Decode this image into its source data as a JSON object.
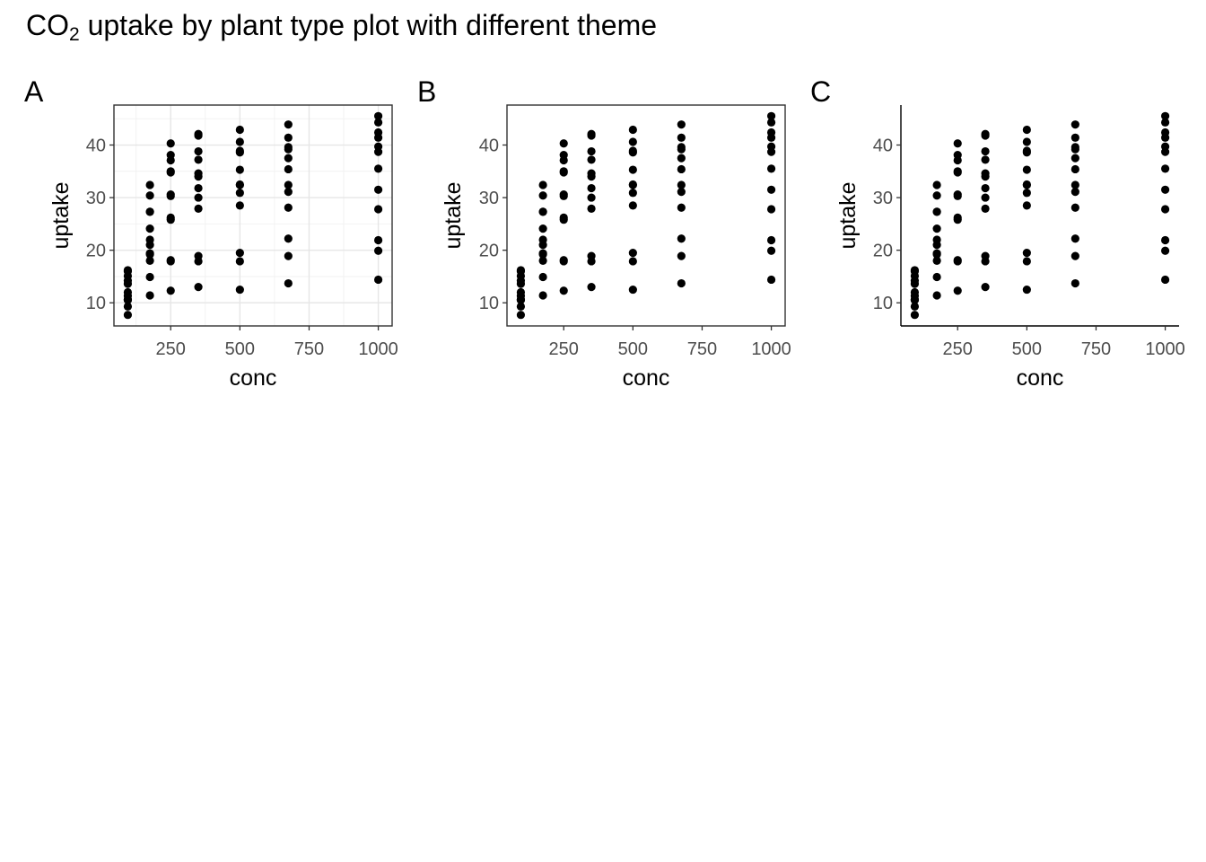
{
  "title": {
    "prefix": "CO",
    "subscript": "2",
    "rest": " uptake by plant type plot with different theme"
  },
  "chart_data": [
    {
      "type": "scatter",
      "panel_label": "A",
      "theme": "light",
      "xlabel": "conc",
      "ylabel": "uptake",
      "xlim": [
        45,
        1050
      ],
      "ylim": [
        5.6,
        47.6
      ],
      "xticks": [
        250,
        500,
        750,
        1000
      ],
      "yticks": [
        10,
        20,
        30,
        40
      ],
      "grid": true,
      "border": "full"
    },
    {
      "type": "scatter",
      "panel_label": "B",
      "theme": "bw-no-grid",
      "xlabel": "conc",
      "ylabel": "uptake",
      "xlim": [
        45,
        1050
      ],
      "ylim": [
        5.6,
        47.6
      ],
      "xticks": [
        250,
        500,
        750,
        1000
      ],
      "yticks": [
        10,
        20,
        30,
        40
      ],
      "grid": false,
      "border": "full"
    },
    {
      "type": "scatter",
      "panel_label": "C",
      "theme": "classic",
      "xlabel": "conc",
      "ylabel": "uptake",
      "xlim": [
        45,
        1050
      ],
      "ylim": [
        5.6,
        47.6
      ],
      "xticks": [
        250,
        500,
        750,
        1000
      ],
      "yticks": [
        10,
        20,
        30,
        40
      ],
      "grid": false,
      "border": "axes"
    }
  ],
  "points": {
    "x": [
      95,
      95,
      95,
      95,
      95,
      95,
      95,
      95,
      95,
      95,
      95,
      95,
      175,
      175,
      175,
      175,
      175,
      175,
      175,
      175,
      175,
      175,
      175,
      175,
      250,
      250,
      250,
      250,
      250,
      250,
      250,
      250,
      250,
      250,
      250,
      250,
      350,
      350,
      350,
      350,
      350,
      350,
      350,
      350,
      350,
      350,
      350,
      350,
      500,
      500,
      500,
      500,
      500,
      500,
      500,
      500,
      500,
      500,
      500,
      500,
      675,
      675,
      675,
      675,
      675,
      675,
      675,
      675,
      675,
      675,
      675,
      675,
      1000,
      1000,
      1000,
      1000,
      1000,
      1000,
      1000,
      1000,
      1000,
      1000,
      1000,
      1000
    ],
    "y": [
      16.0,
      13.6,
      16.2,
      14.2,
      9.3,
      15.1,
      10.6,
      12.0,
      11.3,
      10.5,
      7.7,
      10.6,
      30.4,
      27.3,
      32.4,
      24.1,
      27.3,
      21.0,
      19.2,
      22.0,
      19.4,
      14.9,
      11.4,
      18.0,
      34.8,
      37.1,
      40.3,
      30.3,
      35.0,
      38.1,
      26.2,
      30.6,
      25.8,
      18.1,
      12.3,
      17.9,
      37.2,
      41.8,
      42.1,
      34.6,
      38.8,
      34.0,
      30.0,
      31.8,
      27.9,
      18.9,
      13.0,
      17.9,
      35.3,
      40.6,
      42.9,
      32.5,
      38.6,
      38.9,
      30.9,
      32.4,
      28.5,
      19.5,
      12.5,
      17.9,
      39.2,
      41.4,
      43.9,
      35.4,
      37.5,
      39.6,
      32.4,
      31.1,
      28.1,
      22.2,
      13.7,
      18.9,
      39.7,
      44.3,
      45.5,
      38.7,
      42.4,
      41.4,
      35.5,
      31.5,
      27.8,
      21.9,
      14.4,
      19.9
    ]
  }
}
